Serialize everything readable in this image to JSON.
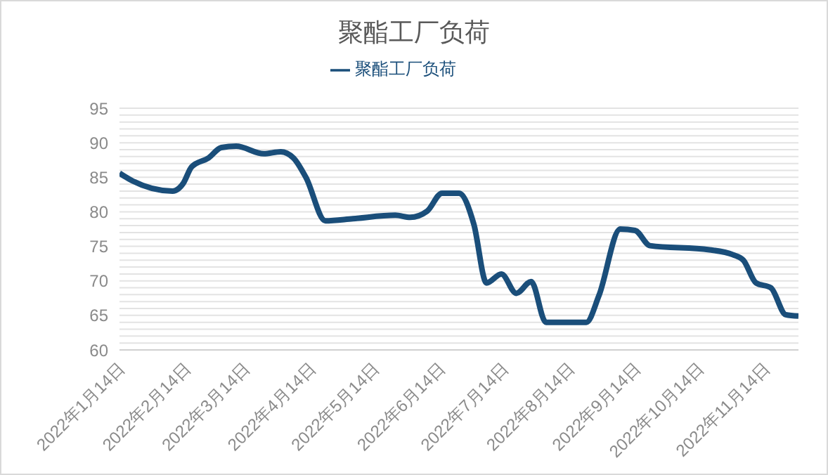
{
  "chart_data": {
    "type": "line",
    "title": "聚酯工厂负荷",
    "x": [
      "2022-01-11",
      "2022-01-17",
      "2022-02-05",
      "2022-02-10",
      "2022-02-14",
      "2022-02-22",
      "2022-02-28",
      "2022-03-07",
      "2022-03-20",
      "2022-03-28",
      "2022-04-03",
      "2022-04-09",
      "2022-04-18",
      "2022-05-01",
      "2022-05-21",
      "2022-05-28",
      "2022-06-05",
      "2022-06-12",
      "2022-06-20",
      "2022-06-27",
      "2022-07-03",
      "2022-07-10",
      "2022-07-17",
      "2022-07-24",
      "2022-07-31",
      "2022-08-19",
      "2022-08-25",
      "2022-09-04",
      "2022-09-11",
      "2022-09-18",
      "2022-10-16",
      "2022-10-27",
      "2022-11-01",
      "2022-11-07",
      "2022-11-14",
      "2022-11-21",
      "2022-11-27"
    ],
    "series": [
      {
        "name": "聚酯工厂负荷",
        "color": "#1a4e7a",
        "values": [
          85.6,
          84.5,
          83.0,
          84.1,
          86.5,
          87.8,
          89.3,
          89.5,
          88.4,
          88.7,
          87.8,
          84.9,
          78.7,
          79.0,
          79.5,
          79.2,
          80.1,
          82.7,
          82.7,
          78.2,
          69.7,
          71.0,
          68.2,
          69.9,
          64.0,
          64.0,
          67.9,
          77.5,
          77.3,
          75.1,
          74.5,
          73.8,
          73.0,
          69.7,
          69.0,
          65.1,
          64.9
        ]
      }
    ],
    "xlim": [
      "2022-01-11",
      "2022-11-27"
    ],
    "xticks": [
      {
        "value": "2022-01-14",
        "label": "2022年1月14日"
      },
      {
        "value": "2022-02-14",
        "label": "2022年2月14日"
      },
      {
        "value": "2022-03-14",
        "label": "2022年3月14日"
      },
      {
        "value": "2022-04-14",
        "label": "2022年4月14日"
      },
      {
        "value": "2022-05-14",
        "label": "2022年5月14日"
      },
      {
        "value": "2022-06-14",
        "label": "2022年6月14日"
      },
      {
        "value": "2022-07-14",
        "label": "2022年7月14日"
      },
      {
        "value": "2022-08-14",
        "label": "2022年8月14日"
      },
      {
        "value": "2022-09-14",
        "label": "2022年9月14日"
      },
      {
        "value": "2022-10-14",
        "label": "2022年10月14日"
      },
      {
        "value": "2022-11-14",
        "label": "2022年11月14日"
      }
    ],
    "ylim": [
      60,
      95
    ],
    "yticks": [
      60,
      {
        "value": 61,
        "label": null
      },
      {
        "value": 62,
        "label": null
      },
      {
        "value": 63,
        "label": null
      },
      {
        "value": 64,
        "label": null
      },
      65,
      {
        "value": 66,
        "label": null
      },
      {
        "value": 67,
        "label": null
      },
      {
        "value": 68,
        "label": null
      },
      {
        "value": 69,
        "label": null
      },
      70,
      {
        "value": 71,
        "label": null
      },
      {
        "value": 72,
        "label": null
      },
      {
        "value": 73,
        "label": null
      },
      {
        "value": 74,
        "label": null
      },
      75,
      {
        "value": 76,
        "label": null
      },
      {
        "value": 77,
        "label": null
      },
      {
        "value": 78,
        "label": null
      },
      {
        "value": 79,
        "label": null
      },
      80,
      {
        "value": 81,
        "label": null
      },
      {
        "value": 82,
        "label": null
      },
      {
        "value": 83,
        "label": null
      },
      {
        "value": 84,
        "label": null
      },
      85,
      {
        "value": 86,
        "label": null
      },
      {
        "value": 87,
        "label": null
      },
      {
        "value": 88,
        "label": null
      },
      {
        "value": 89,
        "label": null
      },
      90,
      {
        "value": 91,
        "label": null
      },
      {
        "value": 92,
        "label": null
      },
      {
        "value": 93,
        "label": null
      },
      {
        "value": 94,
        "label": null
      },
      95
    ],
    "grid": "y",
    "legend": "top",
    "marker": "none",
    "line_style": "solid"
  }
}
